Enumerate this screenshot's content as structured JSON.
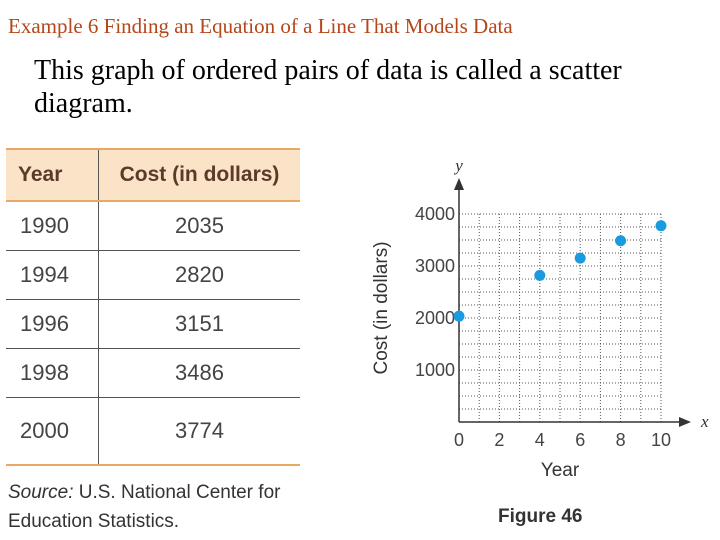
{
  "slide": {
    "title": "Example 6 Finding an Equation of a Line That Models Data",
    "subtitle": "This graph of ordered pairs of data is called a scatter diagram."
  },
  "table": {
    "headers": [
      "Year",
      "Cost (in dollars)"
    ],
    "rows": [
      [
        "1990",
        "2035"
      ],
      [
        "1994",
        "2820"
      ],
      [
        "1996",
        "3151"
      ],
      [
        "1998",
        "3486"
      ],
      [
        "2000",
        "3774"
      ]
    ],
    "source_label": "Source:",
    "source_text": " U.S. National Center for Education Statistics."
  },
  "figure_label": "Figure 46",
  "chart_data": {
    "type": "scatter",
    "x": [
      0,
      4,
      6,
      8,
      10
    ],
    "y": [
      2035,
      2820,
      3151,
      3486,
      3774
    ],
    "xlabel": "Year",
    "ylabel": "Cost (in dollars)",
    "x_axis_letter": "x",
    "y_axis_letter": "y",
    "xlim": [
      0,
      10
    ],
    "ylim": [
      0,
      4000
    ],
    "xticks": [
      0,
      2,
      4,
      6,
      8,
      10
    ],
    "yticks": [
      1000,
      2000,
      3000,
      4000
    ],
    "grid": true,
    "point_color": "#1a9be0"
  }
}
